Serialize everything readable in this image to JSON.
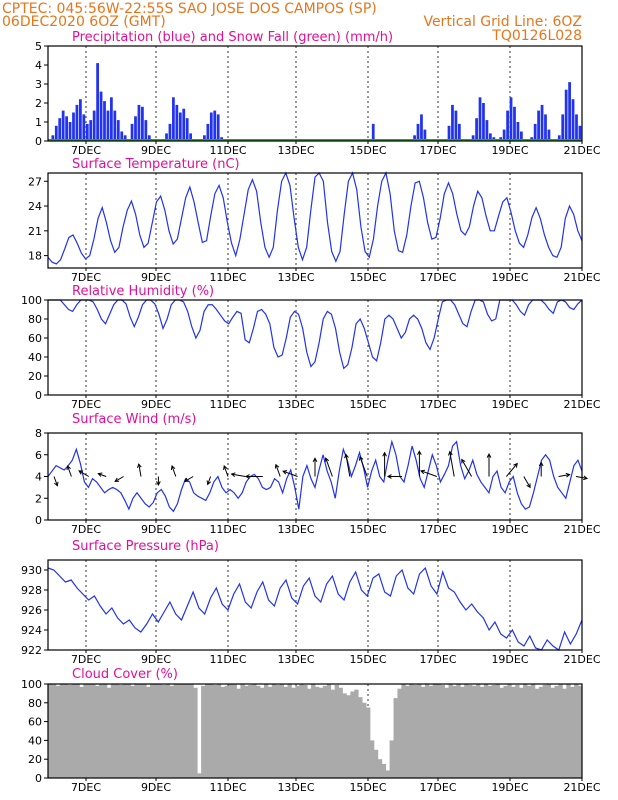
{
  "header": {
    "line1_left": "CPTEC:   045:56W-22:55S  SAO JOSE DOS CAMPOS (SP)",
    "line2_left": "06DEC2020 6OZ (GMT)",
    "line2_right": "Vertical Grid Line: 6OZ",
    "line3_right": "TQ0126L028"
  },
  "colors": {
    "header": "#e8751a",
    "title": "#e0109a",
    "series": "#2233ee",
    "snow": "#22aa22",
    "cloud": "#aaaaaa",
    "arrow": "#000000"
  },
  "x_tick_labels": [
    "7DEC",
    "9DEC",
    "11DEC",
    "13DEC",
    "15DEC",
    "17DEC",
    "19DEC",
    "21DEC"
  ],
  "chart_data": [
    {
      "type": "bar",
      "title": "Precipitation (blue) and Snow Fall (green) (mm/h)",
      "ylim": [
        0,
        5
      ],
      "yticks": [
        0,
        1,
        2,
        3,
        4,
        5
      ],
      "series": [
        {
          "name": "precipitation",
          "values": [
            0.1,
            0.3,
            0.8,
            1.2,
            1.6,
            1.3,
            1.0,
            1.5,
            1.9,
            2.2,
            1.4,
            0.9,
            1.1,
            1.6,
            4.1,
            2.6,
            2.1,
            1.6,
            2.3,
            1.6,
            1.1,
            0.5,
            0.3,
            0.1,
            0.9,
            1.3,
            1.9,
            1.8,
            1.1,
            0.3,
            0.1,
            0,
            0,
            0.1,
            0.4,
            0.9,
            2.3,
            1.9,
            1.5,
            1.7,
            1.2,
            0.4,
            0.1,
            0,
            0,
            0.3,
            0.9,
            1.5,
            1.6,
            1.4,
            0.2,
            0,
            0,
            0,
            0,
            0,
            0,
            0,
            0,
            0,
            0,
            0,
            0,
            0,
            0,
            0,
            0,
            0,
            0,
            0,
            0,
            0,
            0,
            0,
            0,
            0,
            0,
            0,
            0,
            0,
            0,
            0,
            0,
            0,
            0,
            0,
            0,
            0,
            0,
            0,
            0,
            0,
            0,
            0,
            0.9,
            0,
            0,
            0,
            0,
            0,
            0,
            0,
            0,
            0,
            0,
            0,
            0.3,
            0.9,
            1.4,
            0.6,
            0.1,
            0,
            0,
            0,
            0,
            0.1,
            0.8,
            1.9,
            1.6,
            0.9,
            0,
            0,
            0,
            0.3,
            1.2,
            2.3,
            2.0,
            1.1,
            0.4,
            0.2,
            0.1,
            0.2,
            0.6,
            1.6,
            2.3,
            1.8,
            1.0,
            0.5,
            0.1,
            0,
            0.2,
            0.9,
            1.6,
            1.9,
            1.4,
            0.6,
            0.1,
            0,
            0.3,
            1.4,
            2.7,
            3.1,
            2.2,
            1.4,
            0.8
          ]
        },
        {
          "name": "snow",
          "values": [
            0
          ]
        }
      ]
    },
    {
      "type": "line",
      "title": "Surface Temperature (nC)",
      "ylim": [
        16.5,
        28
      ],
      "yticks": [
        18,
        21,
        24,
        27
      ],
      "series": [
        {
          "name": "temperature",
          "values": [
            17.8,
            17.2,
            17.0,
            17.5,
            18.8,
            20.2,
            20.5,
            19.5,
            18.3,
            17.6,
            18.0,
            20.0,
            22.5,
            23.8,
            22.0,
            19.8,
            18.4,
            19.0,
            21.5,
            23.5,
            24.6,
            23.0,
            20.5,
            19.0,
            19.5,
            22.0,
            24.5,
            25.2,
            23.5,
            21.0,
            19.4,
            20.0,
            22.5,
            25.0,
            26.3,
            24.5,
            22.0,
            19.6,
            19.8,
            22.8,
            25.5,
            26.5,
            25.0,
            22.0,
            19.5,
            18.0,
            20.0,
            23.0,
            26.0,
            27.2,
            25.8,
            22.0,
            19.0,
            17.8,
            19.0,
            23.5,
            27.0,
            28.0,
            26.5,
            22.5,
            19.0,
            17.5,
            19.0,
            23.5,
            27.5,
            28.0,
            27.0,
            22.0,
            18.5,
            17.3,
            18.5,
            23.0,
            27.0,
            28.0,
            26.0,
            21.5,
            18.5,
            17.8,
            20.0,
            24.0,
            27.0,
            28.0,
            25.5,
            21.0,
            18.6,
            18.4,
            20.5,
            24.0,
            26.8,
            27.0,
            25.0,
            22.0,
            20.0,
            20.2,
            22.5,
            25.5,
            26.8,
            25.5,
            23.0,
            21.0,
            20.5,
            21.5,
            24.0,
            25.8,
            25.0,
            22.8,
            21.0,
            21.0,
            22.8,
            24.5,
            25.0,
            23.2,
            21.0,
            19.5,
            19.0,
            20.5,
            22.6,
            23.8,
            22.5,
            20.5,
            19.0,
            18.0,
            17.8,
            19.0,
            22.5,
            24.0,
            23.0,
            21.0,
            19.8
          ]
        }
      ]
    },
    {
      "type": "line",
      "title": "Relative Humidity (%)",
      "ylim": [
        0,
        100
      ],
      "yticks": [
        0,
        20,
        40,
        60,
        80,
        100
      ],
      "series": [
        {
          "name": "humidity",
          "values": [
            100,
            100,
            100,
            100,
            95,
            90,
            88,
            95,
            100,
            100,
            100,
            98,
            90,
            80,
            75,
            85,
            95,
            100,
            100,
            96,
            82,
            72,
            82,
            95,
            100,
            100,
            96,
            85,
            70,
            80,
            95,
            100,
            100,
            98,
            88,
            72,
            60,
            68,
            88,
            95,
            95,
            90,
            84,
            78,
            75,
            82,
            88,
            86,
            58,
            55,
            70,
            88,
            90,
            85,
            75,
            50,
            40,
            42,
            60,
            82,
            88,
            85,
            70,
            45,
            30,
            35,
            55,
            80,
            88,
            85,
            70,
            45,
            28,
            32,
            50,
            75,
            80,
            70,
            55,
            40,
            36,
            55,
            80,
            84,
            80,
            70,
            60,
            66,
            80,
            84,
            80,
            70,
            55,
            48,
            60,
            80,
            98,
            100,
            100,
            95,
            85,
            75,
            72,
            88,
            100,
            100,
            98,
            85,
            78,
            80,
            100,
            100,
            100,
            100,
            95,
            88,
            84,
            95,
            100,
            100,
            100,
            96,
            90,
            86,
            98,
            100,
            98,
            92,
            90,
            96,
            100
          ]
        }
      ]
    },
    {
      "type": "line",
      "title": "Surface Wind (m/s)",
      "ylim": [
        0,
        8
      ],
      "yticks": [
        0,
        2,
        4,
        6,
        8
      ],
      "series": [
        {
          "name": "wind_speed",
          "values": [
            4.0,
            4.5,
            5.0,
            4.8,
            4.6,
            5.0,
            5.5,
            6.5,
            5.2,
            3.5,
            3.0,
            3.8,
            3.5,
            3.0,
            2.5,
            2.8,
            3.0,
            2.8,
            2.5,
            1.8,
            1.0,
            2.0,
            2.5,
            2.0,
            1.5,
            1.2,
            1.6,
            2.5,
            2.8,
            2.2,
            1.2,
            0.8,
            1.5,
            2.8,
            3.8,
            3.5,
            2.5,
            2.2,
            2.0,
            1.8,
            2.5,
            3.5,
            4.0,
            3.0,
            2.5,
            2.8,
            2.5,
            2.0,
            2.5,
            3.5,
            4.0,
            4.2,
            3.8,
            3.0,
            2.8,
            3.0,
            3.8,
            3.5,
            2.5,
            3.8,
            4.6,
            3.0,
            1.0,
            4.0,
            5.0,
            3.8,
            3.0,
            4.6,
            6.0,
            4.5,
            3.5,
            2.0,
            4.5,
            6.5,
            5.5,
            4.0,
            5.0,
            6.2,
            4.8,
            3.0,
            4.5,
            5.5,
            4.0,
            3.5,
            5.5,
            7.2,
            6.0,
            4.0,
            3.5,
            5.0,
            6.8,
            5.5,
            3.8,
            3.0,
            4.5,
            6.0,
            5.0,
            3.5,
            4.2,
            5.0,
            6.8,
            7.2,
            5.0,
            3.8,
            4.5,
            5.5,
            4.2,
            3.5,
            3.0,
            2.5,
            4.0,
            4.5,
            3.0,
            2.5,
            3.5,
            4.0,
            2.5,
            1.5,
            1.0,
            1.2,
            2.5,
            4.0,
            5.5,
            6.0,
            5.5,
            4.0,
            3.0,
            2.5,
            2.0,
            3.5,
            5.0,
            5.5,
            4.5
          ]
        }
      ]
    },
    {
      "type": "line",
      "title": "Surface Pressure (hPa)",
      "ylim": [
        922,
        931
      ],
      "yticks": [
        922,
        924,
        926,
        928,
        930
      ],
      "series": [
        {
          "name": "pressure",
          "values": [
            930.2,
            930.0,
            929.4,
            928.8,
            929.0,
            928.2,
            927.6,
            927.0,
            927.4,
            926.4,
            925.6,
            926.2,
            925.2,
            924.6,
            925.0,
            924.2,
            923.8,
            924.6,
            925.6,
            924.8,
            925.8,
            926.8,
            925.6,
            925.0,
            926.4,
            927.8,
            926.2,
            925.6,
            927.2,
            928.2,
            926.6,
            926.0,
            927.6,
            928.6,
            926.8,
            926.2,
            927.8,
            928.8,
            927.0,
            926.4,
            928.2,
            929.0,
            927.2,
            926.6,
            928.4,
            929.2,
            927.4,
            926.8,
            928.6,
            929.4,
            927.6,
            927.0,
            928.8,
            929.8,
            928.0,
            927.4,
            929.2,
            929.6,
            927.8,
            927.4,
            929.4,
            930.0,
            928.2,
            927.6,
            929.6,
            930.2,
            928.4,
            927.6,
            929.8,
            928.2,
            927.8,
            926.8,
            926.0,
            926.6,
            925.8,
            925.2,
            924.0,
            924.8,
            923.6,
            923.2,
            924.0,
            922.8,
            922.4,
            923.4,
            922.2,
            922.0,
            923.0,
            922.4,
            922.0,
            923.8,
            922.6,
            923.6,
            925.0
          ]
        }
      ]
    },
    {
      "type": "bar",
      "title": "Cloud Cover (%)",
      "ylim": [
        0,
        100
      ],
      "yticks": [
        0,
        20,
        40,
        60,
        80,
        100
      ],
      "series": [
        {
          "name": "cloud_cover",
          "values": [
            100,
            100,
            98,
            100,
            100,
            99,
            100,
            100,
            97,
            100,
            100,
            100,
            98,
            100,
            100,
            96,
            100,
            100,
            99,
            100,
            100,
            98,
            100,
            100,
            100,
            97,
            100,
            100,
            100,
            99,
            100,
            98,
            100,
            100,
            100,
            100,
            100,
            96,
            5,
            98,
            100,
            100,
            99,
            100,
            97,
            98,
            100,
            100,
            95,
            100,
            98,
            99,
            100,
            98,
            96,
            100,
            97,
            100,
            99,
            100,
            97,
            100,
            96,
            98,
            100,
            99,
            95,
            100,
            97,
            96,
            98,
            100,
            94,
            99,
            96,
            90,
            88,
            92,
            94,
            86,
            80,
            75,
            40,
            30,
            20,
            15,
            8,
            40,
            85,
            95,
            100,
            98,
            100,
            99,
            100,
            97,
            100,
            98,
            100,
            100,
            99,
            96,
            100,
            98,
            100,
            97,
            100,
            99,
            98,
            100,
            97,
            100,
            98,
            99,
            100,
            96,
            98,
            100,
            97,
            99,
            96,
            100,
            98,
            100,
            95,
            97,
            99,
            100,
            96,
            98,
            100,
            95,
            100,
            97,
            100,
            98
          ]
        }
      ]
    }
  ],
  "wind_arrows": [
    {
      "dir": 20,
      "len": 0.7
    },
    {
      "dir": 200,
      "len": 0.8
    },
    {
      "dir": 240,
      "len": 0.8
    },
    {
      "dir": 250,
      "len": 0.6
    },
    {
      "dir": 300,
      "len": 0.7
    },
    {
      "dir": 190,
      "len": 0.9
    },
    {
      "dir": 0,
      "len": 0.6
    },
    {
      "dir": 200,
      "len": 0.8
    },
    {
      "dir": 300,
      "len": 0.7
    },
    {
      "dir": 340,
      "len": 0.6
    },
    {
      "dir": 200,
      "len": 0.8
    },
    {
      "dir": 260,
      "len": 1.0
    },
    {
      "dir": 270,
      "len": 1.2
    },
    {
      "dir": 200,
      "len": 0.9
    },
    {
      "dir": 250,
      "len": 1.1
    },
    {
      "dir": 180,
      "len": 1.3
    },
    {
      "dir": 200,
      "len": 1.4
    },
    {
      "dir": 190,
      "len": 1.6
    },
    {
      "dir": 200,
      "len": 1.5
    },
    {
      "dir": 180,
      "len": 1.7
    },
    {
      "dir": 270,
      "len": 1.0
    },
    {
      "dir": 180,
      "len": 1.8
    },
    {
      "dir": 250,
      "len": 1.2
    },
    {
      "dir": 190,
      "len": 1.8
    },
    {
      "dir": 210,
      "len": 1.4
    },
    {
      "dir": 180,
      "len": 1.6
    },
    {
      "dir": 140,
      "len": 1.2
    },
    {
      "dir": 30,
      "len": 0.9
    },
    {
      "dir": 180,
      "len": 1.0
    },
    {
      "dir": 100,
      "len": 0.8
    },
    {
      "dir": 80,
      "len": 0.8
    }
  ]
}
